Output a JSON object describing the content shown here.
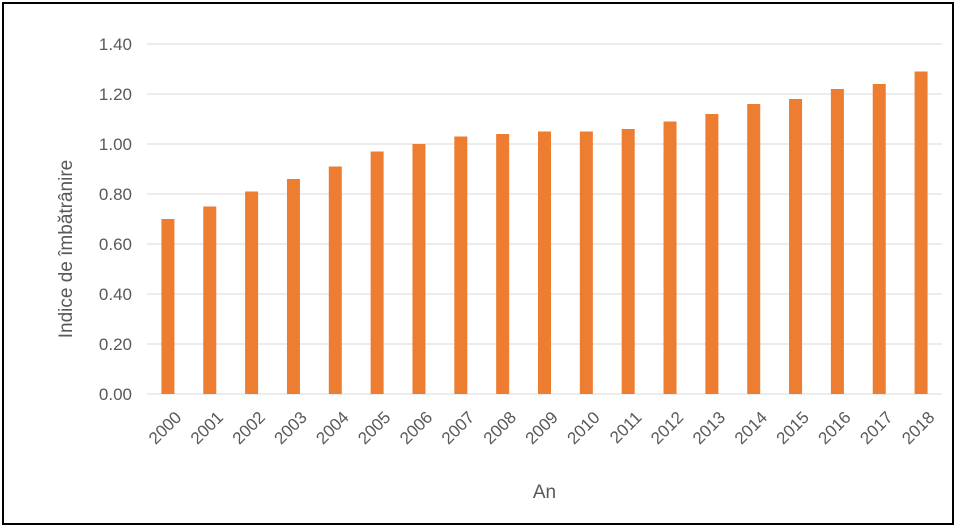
{
  "chart_data": {
    "type": "bar",
    "title": "",
    "xlabel": "An",
    "ylabel": "Indice de îmbătrânire",
    "categories": [
      "2000",
      "2001",
      "2002",
      "2003",
      "2004",
      "2005",
      "2006",
      "2007",
      "2008",
      "2009",
      "2010",
      "2011",
      "2012",
      "2013",
      "2014",
      "2015",
      "2016",
      "2017",
      "2018"
    ],
    "values": [
      0.7,
      0.75,
      0.81,
      0.86,
      0.91,
      0.97,
      1.0,
      1.03,
      1.04,
      1.05,
      1.05,
      1.06,
      1.09,
      1.12,
      1.16,
      1.18,
      1.22,
      1.24,
      1.29
    ],
    "ylim": [
      0,
      1.4
    ],
    "yticks": [
      0,
      0.2,
      0.4,
      0.6,
      0.8,
      1.0,
      1.2,
      1.4
    ],
    "ytick_decimals": 2,
    "grid": true,
    "legend": "none",
    "colors": {
      "bar": "#ED7D31",
      "grid": "#D9D9D9",
      "text": "#595959"
    }
  }
}
